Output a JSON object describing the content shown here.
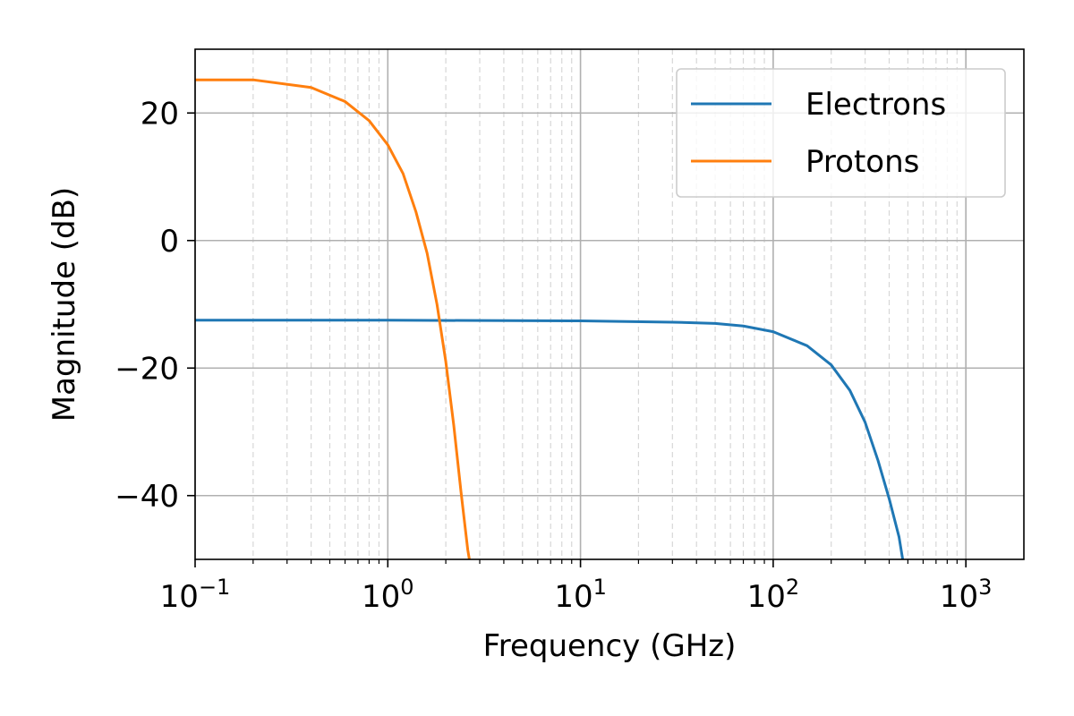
{
  "chart_data": {
    "type": "line",
    "xlabel": "Frequency (GHz)",
    "ylabel": "Magnitude (dB)",
    "xscale": "log",
    "xlim": [
      0.1,
      2000
    ],
    "ylim": [
      -50,
      30
    ],
    "grid": true,
    "minor_grid": true,
    "legend_position": "top-right",
    "x_ticks": [
      {
        "value": 0.1,
        "base": "10",
        "exp": "−1"
      },
      {
        "value": 1,
        "base": "10",
        "exp": "0"
      },
      {
        "value": 10,
        "base": "10",
        "exp": "1"
      },
      {
        "value": 100,
        "base": "10",
        "exp": "2"
      },
      {
        "value": 1000,
        "base": "10",
        "exp": "3"
      }
    ],
    "y_ticks": [
      {
        "value": 20,
        "label": "20"
      },
      {
        "value": 0,
        "label": "0"
      },
      {
        "value": -20,
        "label": "−20"
      },
      {
        "value": -40,
        "label": "−40"
      }
    ],
    "series": [
      {
        "name": "Electrons",
        "color": "#1f77b4",
        "x": [
          0.1,
          1,
          10,
          30,
          50,
          70,
          100,
          150,
          200,
          250,
          300,
          350,
          400,
          450,
          470
        ],
        "y": [
          -12.5,
          -12.5,
          -12.6,
          -12.8,
          -13.0,
          -13.4,
          -14.3,
          -16.5,
          -19.5,
          -23.5,
          -28.5,
          -34.5,
          -40.5,
          -46.5,
          -50
        ]
      },
      {
        "name": "Protons",
        "color": "#ff7f0e",
        "x": [
          0.1,
          0.2,
          0.4,
          0.6,
          0.8,
          1.0,
          1.2,
          1.4,
          1.6,
          1.8,
          2.0,
          2.2,
          2.4,
          2.6,
          2.65
        ],
        "y": [
          25.2,
          25.2,
          24.0,
          21.8,
          18.8,
          15.0,
          10.5,
          4.5,
          -2.0,
          -10.0,
          -19.0,
          -29.0,
          -39.5,
          -48.5,
          -50
        ]
      }
    ]
  }
}
